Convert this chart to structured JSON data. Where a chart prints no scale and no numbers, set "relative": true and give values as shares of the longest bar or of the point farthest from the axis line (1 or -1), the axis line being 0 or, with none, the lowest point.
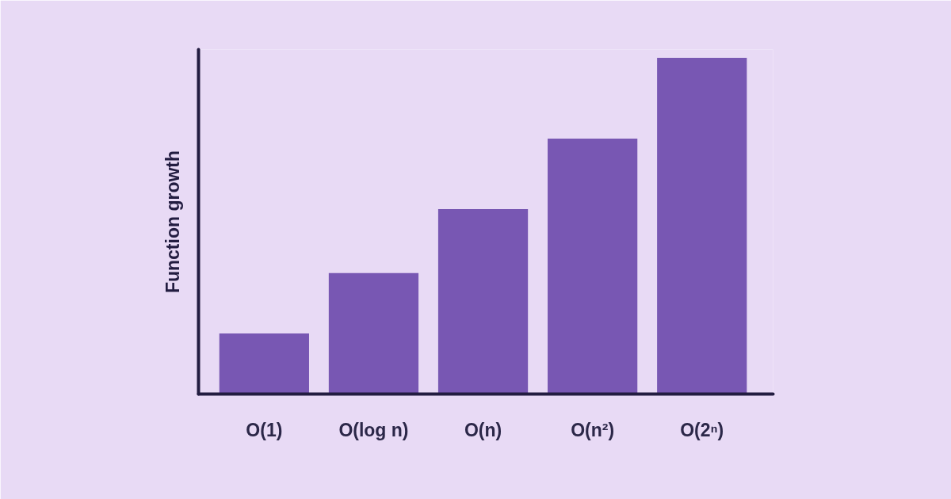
{
  "chart_data": {
    "type": "bar",
    "relative": true,
    "ylabel": "Function growth",
    "categories": [
      "O(1)",
      "O(log n)",
      "O(n)",
      "O(n²)",
      "O(2ⁿ)"
    ],
    "values": [
      0.18,
      0.36,
      0.55,
      0.76,
      1
    ],
    "color": "#7857b3"
  }
}
